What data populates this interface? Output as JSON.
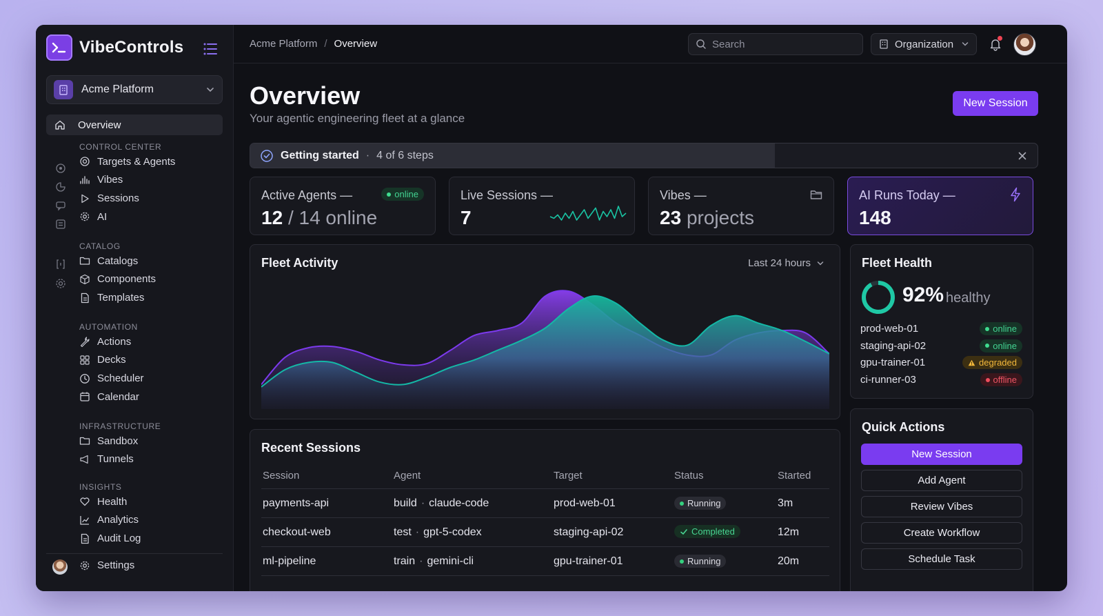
{
  "brand": {
    "name": "VibeControls"
  },
  "sidebar": {
    "org_name": "Acme Platform",
    "overview_label": "Overview",
    "sections": [
      {
        "title": "CONTROL CENTER",
        "items": [
          {
            "label": "Targets & Agents",
            "icon": "target-icon"
          },
          {
            "label": "Vibes",
            "icon": "activity-icon"
          },
          {
            "label": "Sessions",
            "icon": "play-icon"
          },
          {
            "label": "AI",
            "icon": "cog-icon"
          }
        ]
      },
      {
        "title": "CATALOG",
        "items": [
          {
            "label": "Catalogs",
            "icon": "folder-icon"
          },
          {
            "label": "Components",
            "icon": "cube-icon"
          },
          {
            "label": "Templates",
            "icon": "document-icon"
          }
        ]
      },
      {
        "title": "AUTOMATION",
        "items": [
          {
            "label": "Actions",
            "icon": "wrench-icon"
          },
          {
            "label": "Decks",
            "icon": "grid-icon"
          },
          {
            "label": "Scheduler",
            "icon": "clock-icon"
          },
          {
            "label": "Calendar",
            "icon": "calendar-icon"
          }
        ]
      },
      {
        "title": "INFRASTRUCTURE",
        "items": [
          {
            "label": "Sandbox",
            "icon": "folder-icon"
          },
          {
            "label": "Tunnels",
            "icon": "megaphone-icon"
          }
        ]
      },
      {
        "title": "INSIGHTS",
        "items": [
          {
            "label": "Health",
            "icon": "heart-icon"
          },
          {
            "label": "Analytics",
            "icon": "chart-line-icon"
          },
          {
            "label": "Audit Log",
            "icon": "document-icon"
          }
        ]
      }
    ],
    "settings_label": "Settings"
  },
  "topbar": {
    "breadcrumb": [
      "Acme Platform",
      "Overview"
    ],
    "search_placeholder": "Search",
    "org_select": "Organization"
  },
  "page": {
    "title": "Overview",
    "subtitle": "Your agentic engineering fleet at a glance",
    "new_session_label": "New Session"
  },
  "getting_started": {
    "title": "Getting started",
    "separator": "·",
    "steps": "4 of 6 steps",
    "completed": 4,
    "total": 6
  },
  "stats": {
    "active_agents": {
      "label": "Active Agents —",
      "badge": "online",
      "value": "12",
      "slash": "/",
      "suffix": "14 online"
    },
    "live_sessions": {
      "label": "Live Sessions —",
      "value": "7",
      "sparkline": [
        4,
        3,
        5,
        2,
        6,
        3,
        7,
        2,
        5,
        8,
        3,
        6,
        9,
        2,
        7,
        4,
        8,
        3,
        10,
        4,
        6
      ]
    },
    "vibes": {
      "label": "Vibes —",
      "value": "23",
      "suffix": "projects"
    },
    "ai_runs": {
      "label": "AI Runs Today —",
      "value": "148"
    }
  },
  "fleet_activity": {
    "title": "Fleet Activity",
    "range": "Last 24 hours",
    "colors": {
      "series_a": "#7c3aed",
      "series_b": "#14b8a6"
    }
  },
  "chart_data": {
    "type": "area",
    "title": "Fleet Activity",
    "x": [
      0,
      1,
      2,
      3,
      4,
      5,
      6,
      7,
      8,
      9,
      10,
      11,
      12,
      13,
      14,
      15,
      16,
      17,
      18,
      19,
      20,
      21,
      22,
      23,
      24
    ],
    "series": [
      {
        "values": [
          20,
          42,
          50,
          51,
          47,
          40,
          36,
          37,
          48,
          60,
          64,
          70,
          92,
          96,
          85,
          70,
          60,
          50,
          44,
          44,
          56,
          62,
          64,
          62,
          45
        ]
      },
      {
        "values": [
          18,
          32,
          38,
          38,
          30,
          22,
          20,
          26,
          34,
          40,
          48,
          56,
          66,
          82,
          92,
          86,
          70,
          56,
          52,
          68,
          76,
          70,
          64,
          55,
          45
        ]
      }
    ]
  },
  "fleet_health": {
    "title": "Fleet Health",
    "percent": "92%",
    "percent_value": 0.92,
    "word": "healthy",
    "hosts": [
      {
        "name": "prod-web-01",
        "status": "online",
        "kind": "online"
      },
      {
        "name": "staging-api-02",
        "status": "online",
        "kind": "online"
      },
      {
        "name": "gpu-trainer-01",
        "status": "degraded",
        "kind": "degraded"
      },
      {
        "name": "ci-runner-03",
        "status": "offline",
        "kind": "offline"
      }
    ]
  },
  "recent_sessions": {
    "title": "Recent Sessions",
    "columns": [
      "Session",
      "Agent",
      "Target",
      "Status",
      "Started"
    ],
    "rows": [
      {
        "session": "payments-api",
        "agent_a": "build",
        "agent_b": "claude-code",
        "target": "prod-web-01",
        "status": "Running",
        "kind": "running",
        "started": "3m"
      },
      {
        "session": "checkout-web",
        "agent_a": "test",
        "agent_b": "gpt-5-codex",
        "target": "staging-api-02",
        "status": "Completed",
        "kind": "completed",
        "started": "12m"
      },
      {
        "session": "ml-pipeline",
        "agent_a": "train",
        "agent_b": "gemini-cli",
        "target": "gpu-trainer-01",
        "status": "Running",
        "kind": "running",
        "started": "20m"
      }
    ]
  },
  "quick_actions": {
    "title": "Quick Actions",
    "buttons": [
      "New Session",
      "Add Agent",
      "Review Vibes",
      "Create Workflow",
      "Schedule Task"
    ]
  }
}
